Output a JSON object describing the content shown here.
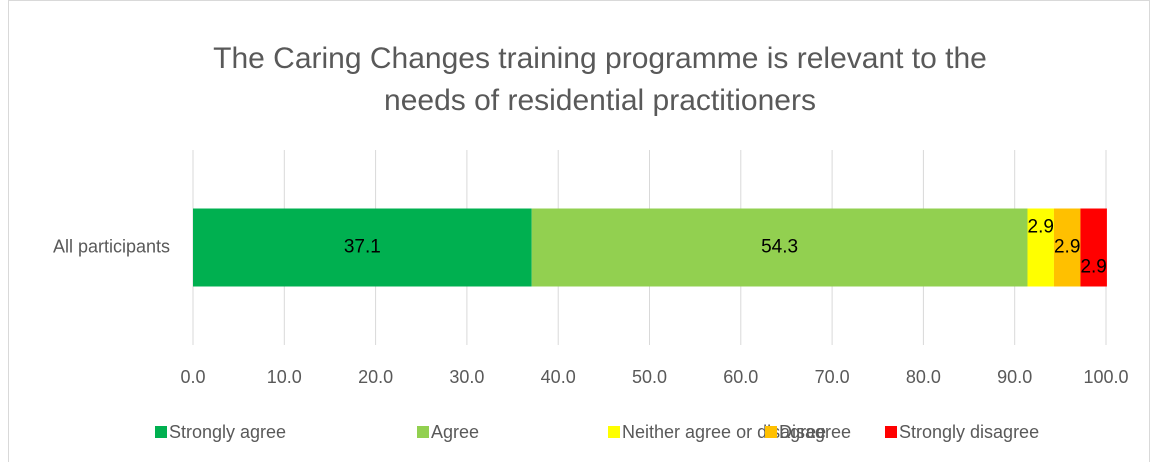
{
  "chart_data": {
    "type": "stacked_bar_horizontal",
    "title": "The Caring Changes training programme is relevant to the needs of residential practitioners",
    "categories": [
      "All participants"
    ],
    "series": [
      {
        "name": "Strongly agree",
        "color": "#00b050",
        "values": [
          37.1
        ]
      },
      {
        "name": "Agree",
        "color": "#92d050",
        "values": [
          54.3
        ]
      },
      {
        "name": "Neither agree or disagree",
        "color": "#ffff00",
        "values": [
          2.9
        ]
      },
      {
        "name": "Disagree",
        "color": "#ffc000",
        "values": [
          2.9
        ]
      },
      {
        "name": "Strongly disagree",
        "color": "#ff0000",
        "values": [
          2.9
        ]
      }
    ],
    "xlim": [
      0,
      100
    ],
    "xticks": [
      {
        "value": 0,
        "label": "0.0"
      },
      {
        "value": 10,
        "label": "10.0"
      },
      {
        "value": 20,
        "label": "20.0"
      },
      {
        "value": 30,
        "label": "30.0"
      },
      {
        "value": 40,
        "label": "40.0"
      },
      {
        "value": 50,
        "label": "50.0"
      },
      {
        "value": 60,
        "label": "60.0"
      },
      {
        "value": 70,
        "label": "70.0"
      },
      {
        "value": 80,
        "label": "80.0"
      },
      {
        "value": 90,
        "label": "90.0"
      },
      {
        "value": 100,
        "label": "100.0"
      }
    ],
    "grid": true,
    "legend": "bottom"
  }
}
